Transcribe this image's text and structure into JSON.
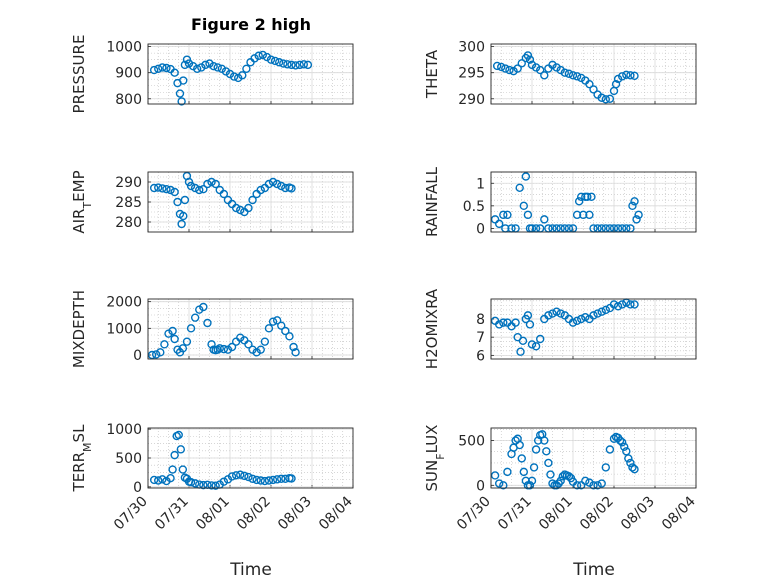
{
  "figure_title": "Figure 2 high",
  "marker_color": "#0072BD",
  "x_ticks": [
    "07/30",
    "07/31",
    "08/01",
    "08/02",
    "08/03",
    "08/04"
  ],
  "x_label": "Time",
  "chart_data": [
    {
      "type": "scatter",
      "ylabel": "PRESSURE",
      "ylim": [
        780,
        1010
      ],
      "yticks": [
        800,
        900,
        1000
      ],
      "xlim": [
        0,
        5
      ],
      "grid": true,
      "x": [
        0.15,
        0.25,
        0.35,
        0.45,
        0.55,
        0.65,
        0.72,
        0.78,
        0.82,
        0.86,
        0.9,
        0.95,
        1.0,
        1.1,
        1.2,
        1.3,
        1.4,
        1.5,
        1.6,
        1.7,
        1.8,
        1.9,
        2.0,
        2.1,
        2.2,
        2.3,
        2.4,
        2.5,
        2.6,
        2.7,
        2.8,
        2.9,
        3.0,
        3.1,
        3.2,
        3.3,
        3.4,
        3.5,
        3.6,
        3.7,
        3.8,
        3.9
      ],
      "y": [
        910,
        915,
        920,
        918,
        914,
        900,
        860,
        820,
        790,
        870,
        930,
        950,
        935,
        925,
        915,
        920,
        930,
        935,
        925,
        920,
        915,
        905,
        895,
        885,
        880,
        890,
        915,
        940,
        955,
        965,
        968,
        960,
        950,
        945,
        940,
        935,
        932,
        930,
        928,
        930,
        932,
        930
      ]
    },
    {
      "type": "scatter",
      "ylabel": "THETA",
      "ylim": [
        289,
        300.5
      ],
      "yticks": [
        290,
        295,
        300
      ],
      "xlim": [
        0,
        5
      ],
      "grid": true,
      "x": [
        0.15,
        0.25,
        0.35,
        0.45,
        0.55,
        0.65,
        0.75,
        0.85,
        0.9,
        0.95,
        1.0,
        1.1,
        1.2,
        1.3,
        1.4,
        1.5,
        1.6,
        1.7,
        1.8,
        1.9,
        2.0,
        2.1,
        2.2,
        2.3,
        2.4,
        2.5,
        2.6,
        2.7,
        2.8,
        2.9,
        3.0,
        3.05,
        3.1,
        3.2,
        3.3,
        3.4,
        3.5
      ],
      "y": [
        296.3,
        296.1,
        295.8,
        295.5,
        295.3,
        295.8,
        296.8,
        297.8,
        298.3,
        297.5,
        296.5,
        296.0,
        295.5,
        294.5,
        295.8,
        296.5,
        296.0,
        295.5,
        295.0,
        294.8,
        294.5,
        294.3,
        294.0,
        293.5,
        292.8,
        291.8,
        290.8,
        290.2,
        289.9,
        290.0,
        291.5,
        292.8,
        293.8,
        294.3,
        294.6,
        294.5,
        294.4
      ]
    },
    {
      "type": "scatter",
      "ylabel": "AIR_TEMP",
      "ylim": [
        277.5,
        292.5
      ],
      "yticks": [
        280,
        285,
        290
      ],
      "xlim": [
        0,
        5
      ],
      "grid": true,
      "x": [
        0.15,
        0.25,
        0.35,
        0.45,
        0.55,
        0.65,
        0.72,
        0.78,
        0.82,
        0.86,
        0.9,
        0.95,
        1.0,
        1.05,
        1.15,
        1.25,
        1.35,
        1.45,
        1.55,
        1.65,
        1.75,
        1.85,
        1.95,
        2.05,
        2.15,
        2.25,
        2.35,
        2.45,
        2.55,
        2.65,
        2.75,
        2.85,
        2.95,
        3.05,
        3.15,
        3.25,
        3.35,
        3.45,
        3.5
      ],
      "y": [
        288.5,
        288.6,
        288.4,
        288.2,
        288.0,
        287.5,
        285.0,
        282.0,
        279.5,
        281.5,
        285.5,
        291.5,
        290.0,
        289.0,
        288.5,
        288.0,
        288.2,
        289.5,
        290.0,
        289.5,
        288.0,
        287.0,
        285.5,
        284.5,
        283.5,
        283.0,
        282.5,
        283.5,
        285.5,
        287.0,
        288.0,
        288.5,
        289.5,
        290.0,
        289.5,
        289.0,
        288.5,
        288.6,
        288.4
      ]
    },
    {
      "type": "scatter",
      "ylabel": "RAINFALL",
      "ylim": [
        -0.08,
        1.25
      ],
      "yticks": [
        0,
        0.5,
        1
      ],
      "xlim": [
        0,
        5
      ],
      "grid": true,
      "x": [
        0.1,
        0.2,
        0.3,
        0.35,
        0.4,
        0.5,
        0.6,
        0.7,
        0.8,
        0.85,
        0.9,
        0.95,
        1.0,
        1.1,
        1.2,
        1.3,
        1.4,
        1.5,
        1.6,
        1.7,
        1.8,
        1.9,
        2.0,
        2.1,
        2.15,
        2.2,
        2.25,
        2.3,
        2.35,
        2.4,
        2.45,
        2.5,
        2.6,
        2.7,
        2.8,
        2.9,
        3.0,
        3.1,
        3.2,
        3.3,
        3.4,
        3.45,
        3.5,
        3.55,
        3.6
      ],
      "y": [
        0.2,
        0.1,
        0.3,
        0.0,
        0.3,
        0.0,
        0.0,
        0.9,
        0.5,
        1.15,
        0.3,
        0.0,
        0.0,
        0.0,
        0.0,
        0.2,
        0.0,
        0.0,
        0.0,
        0.0,
        0.0,
        0.0,
        0.0,
        0.3,
        0.6,
        0.7,
        0.3,
        0.7,
        0.7,
        0.3,
        0.7,
        0.0,
        0.0,
        0.0,
        0.0,
        0.0,
        0.0,
        0.0,
        0.0,
        0.0,
        0.0,
        0.5,
        0.6,
        0.2,
        0.3
      ]
    },
    {
      "type": "scatter",
      "ylabel": "MIXDEPTH",
      "ylim": [
        -150,
        2100
      ],
      "yticks": [
        0,
        1000,
        2000
      ],
      "xlim": [
        0,
        5
      ],
      "grid": true,
      "x": [
        0.1,
        0.2,
        0.3,
        0.4,
        0.5,
        0.6,
        0.65,
        0.72,
        0.78,
        0.85,
        0.95,
        1.05,
        1.15,
        1.25,
        1.35,
        1.45,
        1.55,
        1.6,
        1.65,
        1.7,
        1.75,
        1.85,
        1.95,
        2.05,
        2.15,
        2.25,
        2.35,
        2.45,
        2.55,
        2.65,
        2.75,
        2.85,
        2.95,
        3.05,
        3.15,
        3.25,
        3.35,
        3.45,
        3.55,
        3.6
      ],
      "y": [
        0,
        20,
        100,
        400,
        800,
        900,
        600,
        200,
        100,
        250,
        500,
        1000,
        1400,
        1700,
        1800,
        1200,
        400,
        200,
        180,
        200,
        250,
        220,
        200,
        300,
        500,
        650,
        550,
        400,
        200,
        100,
        200,
        500,
        1000,
        1250,
        1300,
        1100,
        900,
        700,
        300,
        100
      ]
    },
    {
      "type": "scatter",
      "ylabel": "H2OMIXRA",
      "ylim": [
        5.8,
        9.1
      ],
      "yticks": [
        6,
        7,
        8
      ],
      "xlim": [
        0,
        5
      ],
      "grid": true,
      "x": [
        0.1,
        0.2,
        0.3,
        0.4,
        0.5,
        0.6,
        0.65,
        0.72,
        0.78,
        0.85,
        0.9,
        0.95,
        1.0,
        1.1,
        1.2,
        1.3,
        1.4,
        1.5,
        1.6,
        1.7,
        1.8,
        1.9,
        2.0,
        2.1,
        2.2,
        2.3,
        2.4,
        2.5,
        2.6,
        2.7,
        2.8,
        2.9,
        3.0,
        3.1,
        3.2,
        3.3,
        3.4,
        3.5
      ],
      "y": [
        7.9,
        7.7,
        7.8,
        7.8,
        7.6,
        7.8,
        7.0,
        6.2,
        6.8,
        8.0,
        8.2,
        7.7,
        6.6,
        6.5,
        6.9,
        8.0,
        8.2,
        8.3,
        8.4,
        8.3,
        8.2,
        8.0,
        7.8,
        7.9,
        8.0,
        8.1,
        8.0,
        8.2,
        8.3,
        8.4,
        8.5,
        8.6,
        8.8,
        8.7,
        8.8,
        8.9,
        8.8,
        8.8
      ]
    },
    {
      "type": "scatter",
      "ylabel": "TERR_MSL",
      "ylim": [
        -20,
        1020
      ],
      "yticks": [
        0,
        500,
        1000
      ],
      "xlim": [
        0,
        5
      ],
      "grid": true,
      "x": [
        0.15,
        0.25,
        0.35,
        0.45,
        0.55,
        0.6,
        0.65,
        0.7,
        0.75,
        0.8,
        0.85,
        0.9,
        0.95,
        1.0,
        1.05,
        1.15,
        1.25,
        1.35,
        1.45,
        1.55,
        1.65,
        1.75,
        1.85,
        1.95,
        2.05,
        2.15,
        2.25,
        2.35,
        2.45,
        2.55,
        2.65,
        2.75,
        2.85,
        2.95,
        3.05,
        3.15,
        3.25,
        3.35,
        3.45,
        3.5
      ],
      "y": [
        120,
        110,
        130,
        100,
        150,
        300,
        550,
        880,
        900,
        650,
        300,
        160,
        140,
        90,
        80,
        60,
        40,
        30,
        35,
        25,
        20,
        40,
        90,
        130,
        180,
        200,
        210,
        190,
        170,
        140,
        120,
        110,
        100,
        110,
        120,
        130,
        140,
        140,
        150,
        145
      ]
    },
    {
      "type": "scatter",
      "ylabel": "SUN_FLUX",
      "ylim": [
        -30,
        640
      ],
      "yticks": [
        0,
        500
      ],
      "xlim": [
        0,
        5
      ],
      "grid": true,
      "x": [
        0.1,
        0.2,
        0.3,
        0.4,
        0.5,
        0.55,
        0.6,
        0.65,
        0.7,
        0.75,
        0.8,
        0.85,
        0.9,
        0.95,
        1.0,
        1.05,
        1.1,
        1.15,
        1.2,
        1.25,
        1.3,
        1.35,
        1.4,
        1.45,
        1.5,
        1.55,
        1.6,
        1.65,
        1.7,
        1.75,
        1.8,
        1.85,
        1.9,
        1.95,
        2.0,
        2.1,
        2.2,
        2.3,
        2.4,
        2.5,
        2.6,
        2.7,
        2.8,
        2.9,
        3.0,
        3.05,
        3.1,
        3.15,
        3.2,
        3.25,
        3.3,
        3.35,
        3.4,
        3.45,
        3.5
      ],
      "y": [
        110,
        20,
        0,
        150,
        350,
        420,
        500,
        520,
        450,
        300,
        150,
        50,
        0,
        0,
        50,
        200,
        400,
        500,
        560,
        570,
        500,
        380,
        250,
        120,
        20,
        0,
        0,
        20,
        50,
        100,
        120,
        110,
        100,
        80,
        40,
        0,
        0,
        50,
        30,
        0,
        0,
        20,
        200,
        400,
        520,
        540,
        530,
        500,
        480,
        430,
        380,
        300,
        250,
        200,
        180
      ]
    }
  ]
}
